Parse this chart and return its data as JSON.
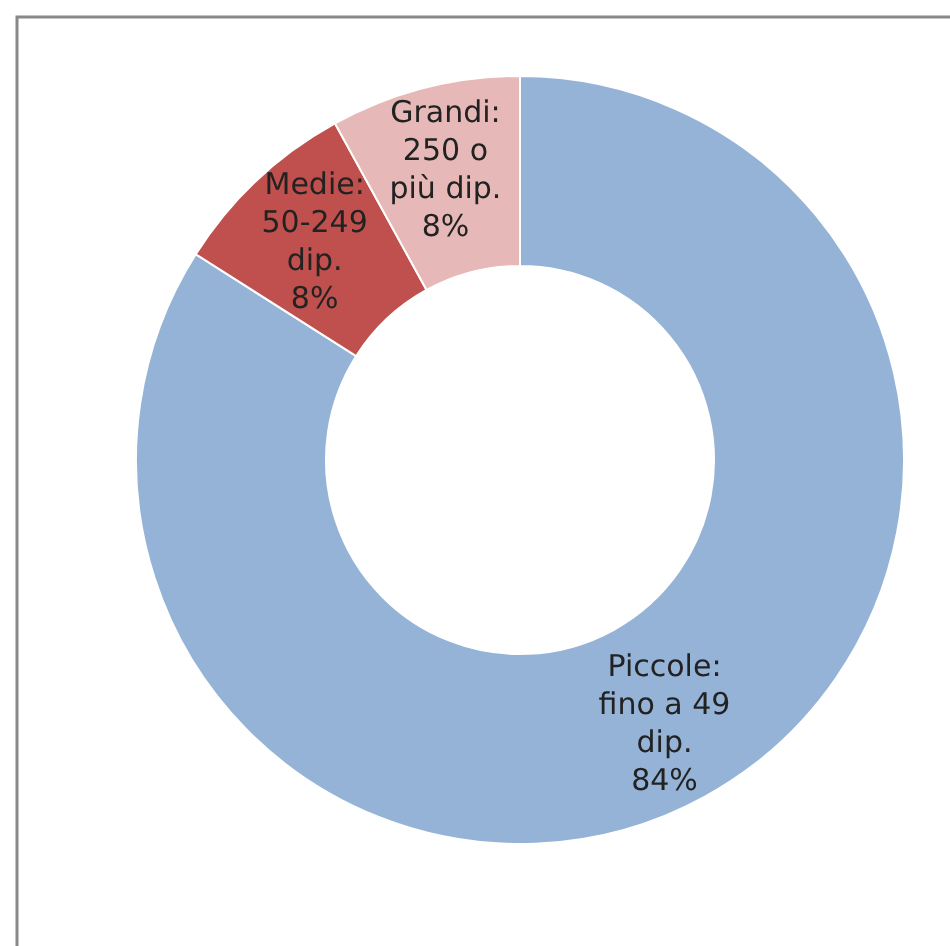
{
  "chart_data": {
    "type": "donut",
    "categories": [
      "Piccole:\nfino a 49\ndip.",
      "Medie:\n50-249\ndip.",
      "Grandi:\n250 o\npiù dip."
    ],
    "values": [
      84,
      8,
      8
    ],
    "colors": [
      "#95b3d7",
      "#c0504d",
      "#e6b9b8"
    ],
    "value_labels": [
      "84%",
      "8%",
      "8%"
    ],
    "legend": false
  }
}
